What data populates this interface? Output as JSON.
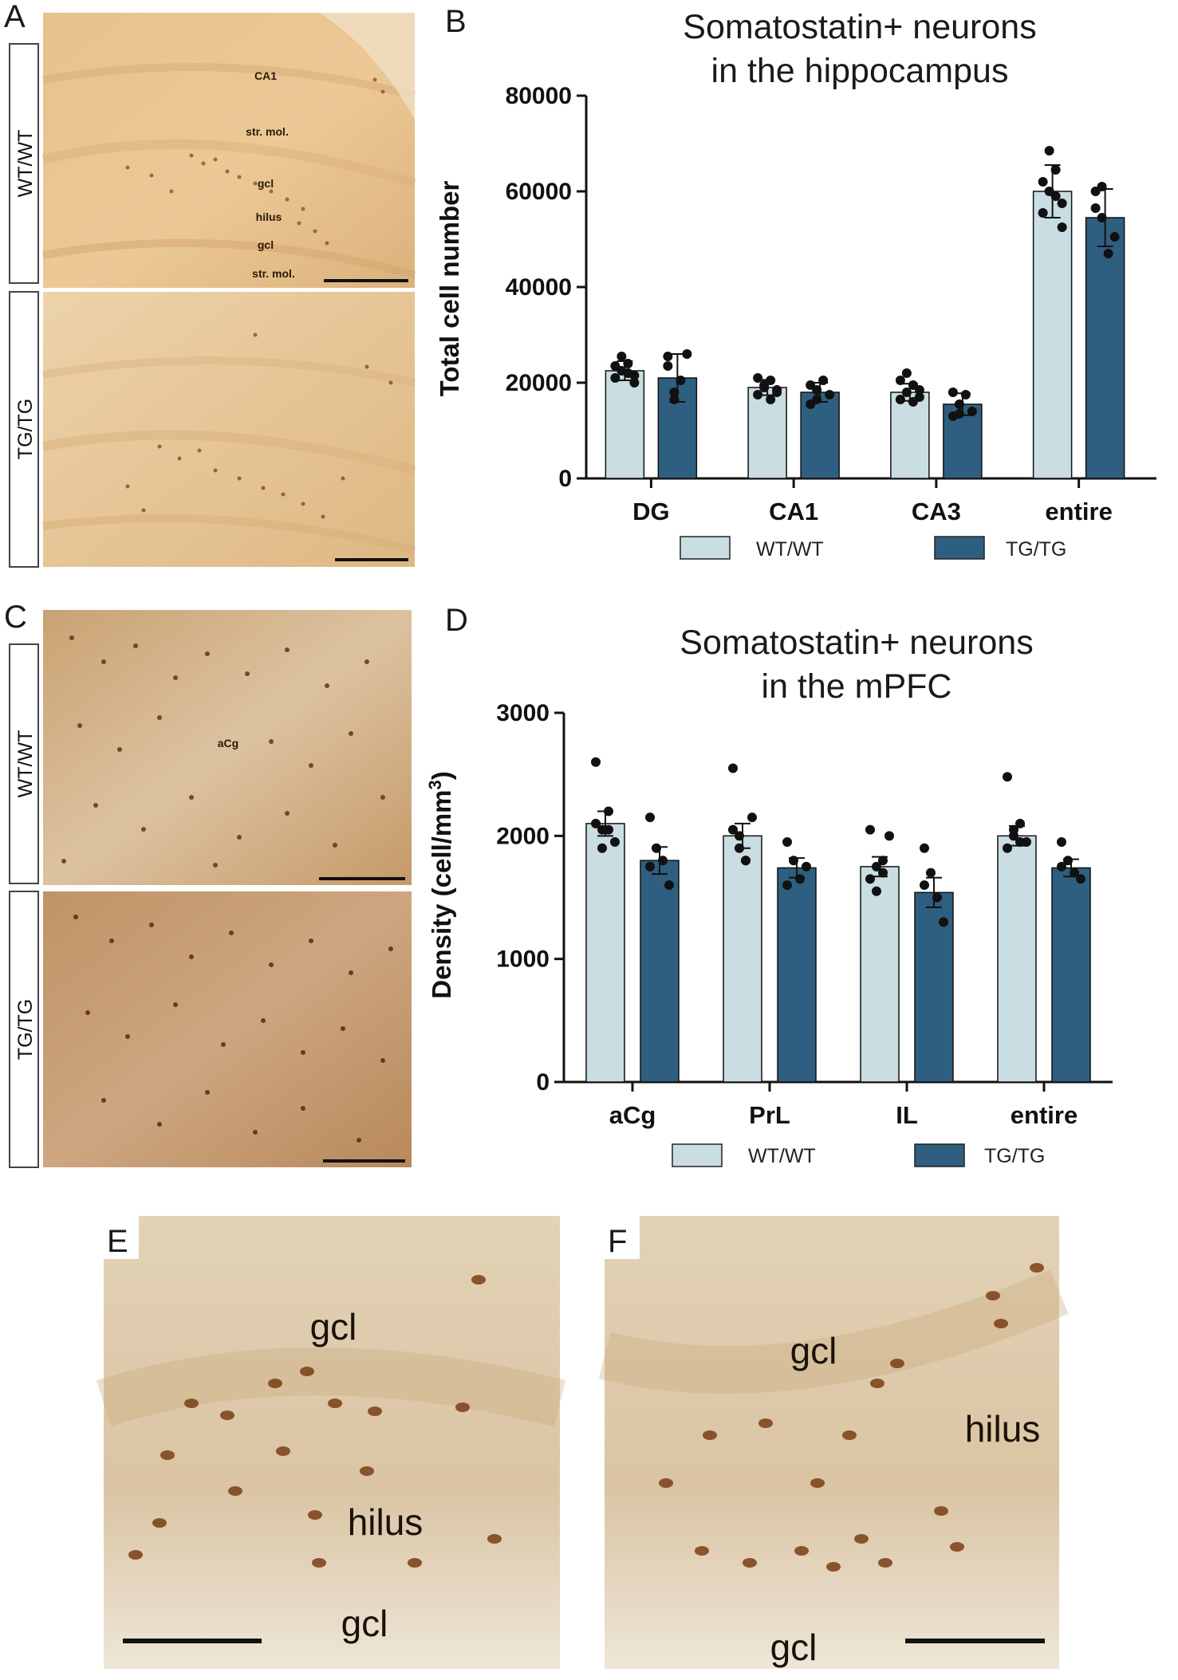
{
  "panels": {
    "A": {
      "letter": "A",
      "rows": [
        "WT/WT",
        "TG/TG"
      ],
      "labels": [
        "CA1",
        "str. mol.",
        "gcl",
        "hilus",
        "gcl",
        "str. mol."
      ]
    },
    "B": {
      "letter": "B"
    },
    "C": {
      "letter": "C",
      "rows": [
        "WT/WT",
        "TG/TG"
      ],
      "labels": [
        "aCg"
      ]
    },
    "D": {
      "letter": "D"
    },
    "E": {
      "letter": "E",
      "labels": [
        "gcl",
        "hilus",
        "gcl"
      ]
    },
    "F": {
      "letter": "F",
      "labels": [
        "gcl",
        "hilus",
        "gcl"
      ]
    }
  },
  "colors": {
    "wt": "#c9dde3",
    "tg": "#2f5f80",
    "tissue_light": "#e8c48e",
    "tissue_brown": "#c69a6a"
  },
  "chart_data": [
    {
      "type": "bar",
      "title": "Somatostatin+ neurons\nin the hippocampus",
      "ylabel": "Total cell number",
      "ylim": [
        0,
        80000
      ],
      "yticks": [
        "0",
        "20000",
        "40000",
        "60000",
        "80000"
      ],
      "categories": [
        "DG",
        "CA1",
        "CA3",
        "entire"
      ],
      "series": [
        {
          "name": "WT/WT",
          "values": [
            22500,
            19000,
            18000,
            60000
          ],
          "error": [
            2000,
            1600,
            1800,
            5500
          ],
          "points": [
            [
              21000,
              22500,
              24000,
              21500,
              23500,
              25500,
              22000,
              20000
            ],
            [
              17500,
              19000,
              20500,
              18000,
              21000,
              19500,
              16500,
              18500
            ],
            [
              16500,
              18000,
              19500,
              17000,
              20500,
              22000,
              16000,
              18500
            ],
            [
              55500,
              60000,
              64500,
              52500,
              62000,
              68500,
              59000,
              57500
            ]
          ]
        },
        {
          "name": "TG/TG",
          "values": [
            21000,
            18000,
            15500,
            54500
          ],
          "error": [
            5000,
            2000,
            2300,
            6000
          ],
          "points": [
            [
              25500,
              16500,
              20500,
              26000,
              23500,
              18000
            ],
            [
              15500,
              18500,
              20500,
              17500,
              19500,
              16500
            ],
            [
              13000,
              15500,
              17500,
              14000,
              18000,
              13500
            ],
            [
              56500,
              61000,
              47000,
              50500,
              60000,
              54500
            ]
          ]
        }
      ],
      "legend": "bottom"
    },
    {
      "type": "bar",
      "title": "Somatostatin+ neurons\nin the mPFC",
      "ylabel": "Density  (cell/mm",
      "ylabel_sup": "3",
      "ylabel_end": ")",
      "ylim": [
        0,
        3000
      ],
      "yticks": [
        "0",
        "1000",
        "2000",
        "3000"
      ],
      "categories": [
        "aCg",
        "PrL",
        "IL",
        "entire"
      ],
      "series": [
        {
          "name": "WT/WT",
          "values": [
            2100,
            2000,
            1750,
            2000
          ],
          "error": [
            100,
            100,
            80,
            80
          ],
          "points": [
            [
              2600,
              2050,
              2200,
              1950,
              2100,
              1900,
              2050
            ],
            [
              2550,
              2000,
              1800,
              2150,
              2050,
              1900,
              1800
            ],
            [
              2050,
              1750,
              1800,
              2000,
              1650,
              1550,
              1700
            ],
            [
              2480,
              2000,
              2100,
              1950,
              1900,
              2050,
              1950
            ]
          ]
        },
        {
          "name": "TG/TG",
          "values": [
            1800,
            1740,
            1540,
            1740
          ],
          "error": [
            110,
            80,
            120,
            70
          ],
          "points": [
            [
              2150,
              1900,
              1800,
              1600,
              1750
            ],
            [
              1950,
              1800,
              1650,
              1750,
              1600
            ],
            [
              1900,
              1700,
              1500,
              1300,
              1600
            ],
            [
              1950,
              1800,
              1700,
              1650,
              1750
            ]
          ]
        }
      ],
      "legend": "bottom"
    }
  ]
}
